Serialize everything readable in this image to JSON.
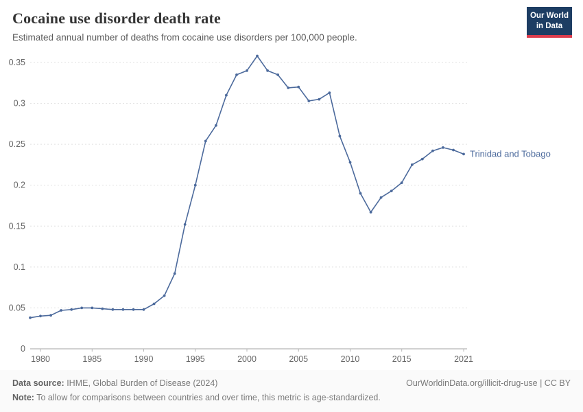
{
  "header": {
    "title": "Cocaine use disorder death rate",
    "subtitle": "Estimated annual number of deaths from cocaine use disorders per 100,000 people."
  },
  "logo": {
    "line1": "Our World",
    "line2": "in Data",
    "bg_color": "#1d3d63",
    "accent_color": "#dc3c4c"
  },
  "chart_data": {
    "type": "line",
    "title": "Cocaine use disorder death rate",
    "grid": "horizontal-dashed",
    "legend_position": "right-of-line",
    "line_color": "#4c6a9c",
    "xlim": [
      1979,
      2021
    ],
    "ylim": [
      0,
      0.35
    ],
    "xticks": {
      "values": [
        1980,
        1985,
        1990,
        1995,
        2000,
        2005,
        2010,
        2015,
        2021
      ],
      "labels": [
        "1980",
        "1985",
        "1990",
        "1995",
        "2000",
        "2005",
        "2010",
        "2015",
        "2021"
      ]
    },
    "yticks": {
      "values": [
        0,
        0.05,
        0.1,
        0.15,
        0.2,
        0.25,
        0.3,
        0.35
      ],
      "labels": [
        "0",
        "0.05",
        "0.1",
        "0.15",
        "0.2",
        "0.25",
        "0.3",
        "0.35"
      ]
    },
    "x": [
      1979,
      1980,
      1981,
      1982,
      1983,
      1984,
      1985,
      1986,
      1987,
      1988,
      1989,
      1990,
      1991,
      1992,
      1993,
      1994,
      1995,
      1996,
      1997,
      1998,
      1999,
      2000,
      2001,
      2002,
      2003,
      2004,
      2005,
      2006,
      2007,
      2008,
      2009,
      2010,
      2011,
      2012,
      2013,
      2014,
      2015,
      2016,
      2017,
      2018,
      2019,
      2020,
      2021
    ],
    "series": [
      {
        "name": "Trinidad and Tobago",
        "values": [
          0.038,
          0.04,
          0.041,
          0.047,
          0.048,
          0.05,
          0.05,
          0.049,
          0.048,
          0.048,
          0.048,
          0.048,
          0.055,
          0.065,
          0.092,
          0.152,
          0.2,
          0.254,
          0.273,
          0.31,
          0.335,
          0.34,
          0.358,
          0.34,
          0.335,
          0.319,
          0.32,
          0.303,
          0.305,
          0.313,
          0.26,
          0.228,
          0.19,
          0.167,
          0.185,
          0.193,
          0.203,
          0.225,
          0.232,
          0.242,
          0.246,
          0.243,
          0.238
        ]
      }
    ]
  },
  "footer": {
    "source_label": "Data source:",
    "source_text": " IHME, Global Burden of Disease (2024)",
    "rights": "OurWorldinData.org/illicit-drug-use | CC BY",
    "note_label": "Note:",
    "note_text": " To allow for comparisons between countries and over time, this metric is age-standardized."
  }
}
